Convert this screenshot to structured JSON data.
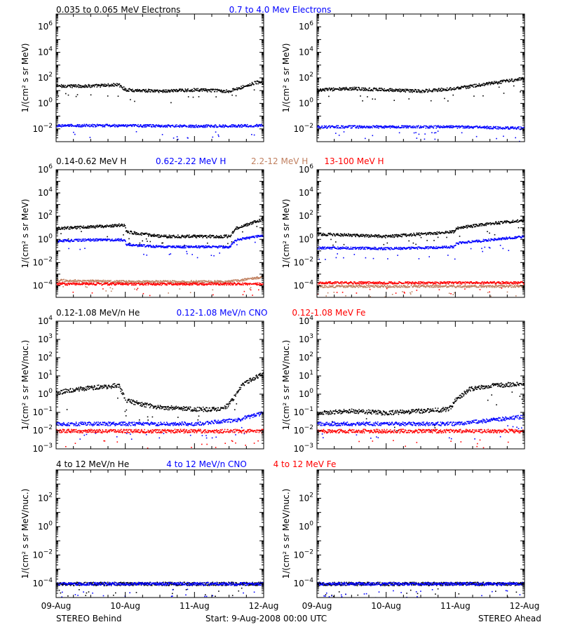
{
  "footer": {
    "left": "STEREO Behind",
    "center": "Start:  9-Aug-2008 00:00 UTC",
    "right": "STEREO Ahead"
  },
  "x_axis": {
    "labels": [
      "09-Aug",
      "10-Aug",
      "11-Aug",
      "12-Aug"
    ]
  },
  "colors": {
    "black": "#000000",
    "blue": "#0000ff",
    "tan": "#c08060",
    "red": "#ff0000"
  },
  "panels": [
    {
      "legend": [
        {
          "text": "0.035 to 0.065 MeV Electrons",
          "color": "#000000"
        },
        {
          "text": "0.7 to 4.0 Mev Electrons",
          "color": "#0000ff"
        }
      ]
    },
    {
      "legend": [
        {
          "text": "0.14-0.62 MeV H",
          "color": "#000000"
        },
        {
          "text": "0.62-2.22 MeV H",
          "color": "#0000ff"
        },
        {
          "text": "2.2-12 MeV H",
          "color": "#c08060"
        },
        {
          "text": "13-100 MeV H",
          "color": "#ff0000"
        }
      ]
    },
    {
      "legend": [
        {
          "text": "0.12-1.08 MeV/n He",
          "color": "#000000"
        },
        {
          "text": "0.12-1.08 MeV/n CNO",
          "color": "#0000ff"
        },
        {
          "text": "0.12-1.08 MeV Fe",
          "color": "#ff0000"
        }
      ]
    },
    {
      "legend": [
        {
          "text": "4 to 12 MeV/n He",
          "color": "#000000"
        },
        {
          "text": "4 to 12 MeV/n CNO",
          "color": "#0000ff"
        },
        {
          "text": "4 to 12 MeV Fe",
          "color": "#ff0000"
        }
      ]
    }
  ],
  "chart_data": [
    {
      "type": "scatter",
      "panel": 0,
      "spacecraft": "STEREO Behind",
      "ylabel": "1/(cm² s sr MeV)",
      "yscale": "log",
      "ylim_exp": [
        -3,
        7
      ],
      "yticks_exp": [
        -2,
        0,
        2,
        4,
        6
      ],
      "xlim": [
        0,
        3
      ],
      "series": [
        {
          "name": "0.035 to 0.065 MeV Electrons",
          "color": "#000000",
          "x": [
            0,
            0.5,
            0.9,
            1.0,
            1.5,
            2.0,
            2.5,
            2.9,
            3.0
          ],
          "y_exp": [
            1.4,
            1.4,
            1.5,
            1.1,
            1.0,
            1.1,
            1.0,
            1.7,
            1.6
          ]
        },
        {
          "name": "0.7 to 4.0 Mev Electrons",
          "color": "#0000ff",
          "x": [
            0,
            1.0,
            2.0,
            3.0
          ],
          "y_exp": [
            -1.7,
            -1.7,
            -1.75,
            -1.7
          ]
        }
      ]
    },
    {
      "type": "scatter",
      "panel": 0,
      "spacecraft": "STEREO Ahead",
      "ylabel": "1/(cm² s sr MeV)",
      "yscale": "log",
      "ylim_exp": [
        -3,
        7
      ],
      "yticks_exp": [
        -2,
        0,
        2,
        4,
        6
      ],
      "xlim": [
        0,
        3
      ],
      "series": [
        {
          "name": "0.035 to 0.065 MeV Electrons",
          "color": "#000000",
          "x": [
            0,
            0.5,
            1.0,
            1.5,
            2.0,
            2.5,
            3.0
          ],
          "y_exp": [
            1.1,
            1.2,
            1.1,
            1.0,
            1.2,
            1.6,
            2.0
          ]
        },
        {
          "name": "0.7 to 4.0 Mev Electrons",
          "color": "#0000ff",
          "x": [
            0,
            1.0,
            2.0,
            3.0
          ],
          "y_exp": [
            -1.8,
            -1.8,
            -1.8,
            -1.9
          ]
        }
      ]
    },
    {
      "type": "scatter",
      "panel": 1,
      "spacecraft": "STEREO Behind",
      "ylabel": "1/(cm² s sr MeV)",
      "yscale": "log",
      "ylim_exp": [
        -5,
        6
      ],
      "yticks_exp": [
        -4,
        -2,
        0,
        2,
        4,
        6
      ],
      "xlim": [
        0,
        3
      ],
      "series": [
        {
          "name": "0.14-0.62 MeV H",
          "color": "#000000",
          "x": [
            0,
            0.5,
            0.99,
            1.0,
            1.5,
            2.0,
            2.5,
            2.6,
            3.0
          ],
          "y_exp": [
            1.0,
            1.1,
            1.3,
            0.7,
            0.3,
            0.3,
            0.3,
            1.0,
            1.8
          ]
        },
        {
          "name": "0.62-2.22 MeV H",
          "color": "#0000ff",
          "x": [
            0,
            0.5,
            0.99,
            1.0,
            1.5,
            2.0,
            2.5,
            2.6,
            3.0
          ],
          "y_exp": [
            -0.1,
            0.0,
            0.0,
            -0.4,
            -0.6,
            -0.6,
            -0.6,
            0.0,
            0.4
          ]
        },
        {
          "name": "2.2-12 MeV H",
          "color": "#c08060",
          "x": [
            0,
            1.0,
            2.0,
            2.5,
            3.0
          ],
          "y_exp": [
            -3.5,
            -3.6,
            -3.6,
            -3.6,
            -3.2
          ]
        },
        {
          "name": "13-100 MeV H",
          "color": "#ff0000",
          "x": [
            0,
            1.0,
            2.0,
            3.0
          ],
          "y_exp": [
            -3.8,
            -3.8,
            -3.8,
            -3.8
          ]
        }
      ]
    },
    {
      "type": "scatter",
      "panel": 1,
      "spacecraft": "STEREO Ahead",
      "ylabel": "1/(cm² s sr MeV)",
      "yscale": "log",
      "ylim_exp": [
        -5,
        6
      ],
      "yticks_exp": [
        -4,
        -2,
        0,
        2,
        4,
        6
      ],
      "xlim": [
        0,
        3
      ],
      "series": [
        {
          "name": "0.14-0.62 MeV H",
          "color": "#000000",
          "x": [
            0,
            0.5,
            1.0,
            1.5,
            1.99,
            2.0,
            2.5,
            3.0
          ],
          "y_exp": [
            0.5,
            0.4,
            0.3,
            0.5,
            0.7,
            1.0,
            1.4,
            1.7
          ]
        },
        {
          "name": "0.62-2.22 MeV H",
          "color": "#0000ff",
          "x": [
            0,
            0.5,
            1.0,
            1.5,
            1.99,
            2.0,
            2.5,
            3.0
          ],
          "y_exp": [
            -0.7,
            -0.7,
            -0.75,
            -0.7,
            -0.6,
            -0.3,
            0.0,
            0.3
          ]
        },
        {
          "name": "2.2-12 MeV H",
          "color": "#c08060",
          "x": [
            0,
            1.0,
            2.0,
            3.0
          ],
          "y_exp": [
            -4.0,
            -4.0,
            -4.0,
            -4.0
          ]
        },
        {
          "name": "13-100 MeV H",
          "color": "#ff0000",
          "x": [
            0,
            1.0,
            2.0,
            3.0
          ],
          "y_exp": [
            -3.7,
            -3.7,
            -3.7,
            -3.7
          ]
        }
      ]
    },
    {
      "type": "scatter",
      "panel": 2,
      "spacecraft": "STEREO Behind",
      "ylabel": "1/(cm² s sr MeV/nuc.)",
      "yscale": "log",
      "ylim_exp": [
        -3,
        4
      ],
      "yticks_exp": [
        -3,
        -2,
        -1,
        0,
        1,
        2,
        3,
        4
      ],
      "xlim": [
        0,
        3
      ],
      "series": [
        {
          "name": "0.12-1.08 MeV/n He",
          "color": "#000000",
          "x": [
            0,
            0.3,
            0.6,
            0.9,
            1.0,
            1.2,
            1.5,
            2.0,
            2.4,
            2.5,
            2.7,
            3.0
          ],
          "y_exp": [
            0.1,
            0.3,
            0.4,
            0.5,
            -0.3,
            -0.5,
            -0.7,
            -0.8,
            -0.8,
            -0.5,
            0.6,
            1.2
          ]
        },
        {
          "name": "0.12-1.08 MeV/n CNO",
          "color": "#0000ff",
          "x": [
            0,
            1.0,
            2.0,
            2.6,
            3.0
          ],
          "y_exp": [
            -1.6,
            -1.6,
            -1.6,
            -1.4,
            -1.0
          ]
        },
        {
          "name": "0.12-1.08 MeV Fe",
          "color": "#ff0000",
          "x": [
            0,
            1.0,
            2.0,
            3.0
          ],
          "y_exp": [
            -2.0,
            -2.0,
            -2.0,
            -2.0
          ]
        }
      ]
    },
    {
      "type": "scatter",
      "panel": 2,
      "spacecraft": "STEREO Ahead",
      "ylabel": "1/(cm² s sr MeV/nuc.)",
      "yscale": "log",
      "ylim_exp": [
        -3,
        4
      ],
      "yticks_exp": [
        -3,
        -2,
        -1,
        0,
        1,
        2,
        3,
        4
      ],
      "xlim": [
        0,
        3
      ],
      "series": [
        {
          "name": "0.12-1.08 MeV/n He",
          "color": "#000000",
          "x": [
            0,
            0.5,
            1.0,
            1.5,
            1.9,
            2.0,
            2.2,
            2.5,
            3.0
          ],
          "y_exp": [
            -1.0,
            -0.9,
            -1.0,
            -0.9,
            -0.8,
            -0.3,
            0.3,
            0.5,
            0.6
          ]
        },
        {
          "name": "0.12-1.08 MeV/n CNO",
          "color": "#0000ff",
          "x": [
            0,
            1.0,
            2.0,
            3.0
          ],
          "y_exp": [
            -1.6,
            -1.6,
            -1.6,
            -1.2
          ]
        },
        {
          "name": "0.12-1.08 MeV Fe",
          "color": "#ff0000",
          "x": [
            0,
            1.0,
            2.0,
            3.0
          ],
          "y_exp": [
            -2.0,
            -2.0,
            -2.0,
            -2.0
          ]
        }
      ]
    },
    {
      "type": "scatter",
      "panel": 3,
      "spacecraft": "STEREO Behind",
      "ylabel": "1/(cm² s sr MeV/nuc.)",
      "yscale": "log",
      "ylim_exp": [
        -5,
        4
      ],
      "yticks_exp": [
        -4,
        -2,
        0,
        2
      ],
      "xlim": [
        0,
        3
      ],
      "series": [
        {
          "name": "4 to 12 MeV/n He",
          "color": "#000000",
          "x": [
            0,
            1.0,
            2.0,
            3.0
          ],
          "y_exp": [
            -4.0,
            -4.0,
            -4.0,
            -4.0
          ]
        },
        {
          "name": "4 to 12 MeV/n CNO",
          "color": "#0000ff",
          "x": [
            0,
            1.0,
            2.0,
            3.0
          ],
          "y_exp": [
            -4.0,
            -4.0,
            -4.0,
            -4.0
          ]
        }
      ]
    },
    {
      "type": "scatter",
      "panel": 3,
      "spacecraft": "STEREO Ahead",
      "ylabel": "1/(cm² s sr MeV/nuc.)",
      "yscale": "log",
      "ylim_exp": [
        -5,
        4
      ],
      "yticks_exp": [
        -4,
        -2,
        0,
        2
      ],
      "xlim": [
        0,
        3
      ],
      "series": [
        {
          "name": "4 to 12 MeV/n He",
          "color": "#000000",
          "x": [
            0,
            1.0,
            2.0,
            3.0
          ],
          "y_exp": [
            -4.0,
            -4.0,
            -4.0,
            -4.0
          ]
        },
        {
          "name": "4 to 12 MeV/n CNO",
          "color": "#0000ff",
          "x": [
            0,
            1.0,
            2.0,
            3.0
          ],
          "y_exp": [
            -4.0,
            -4.0,
            -4.0,
            -4.0
          ]
        }
      ]
    }
  ]
}
